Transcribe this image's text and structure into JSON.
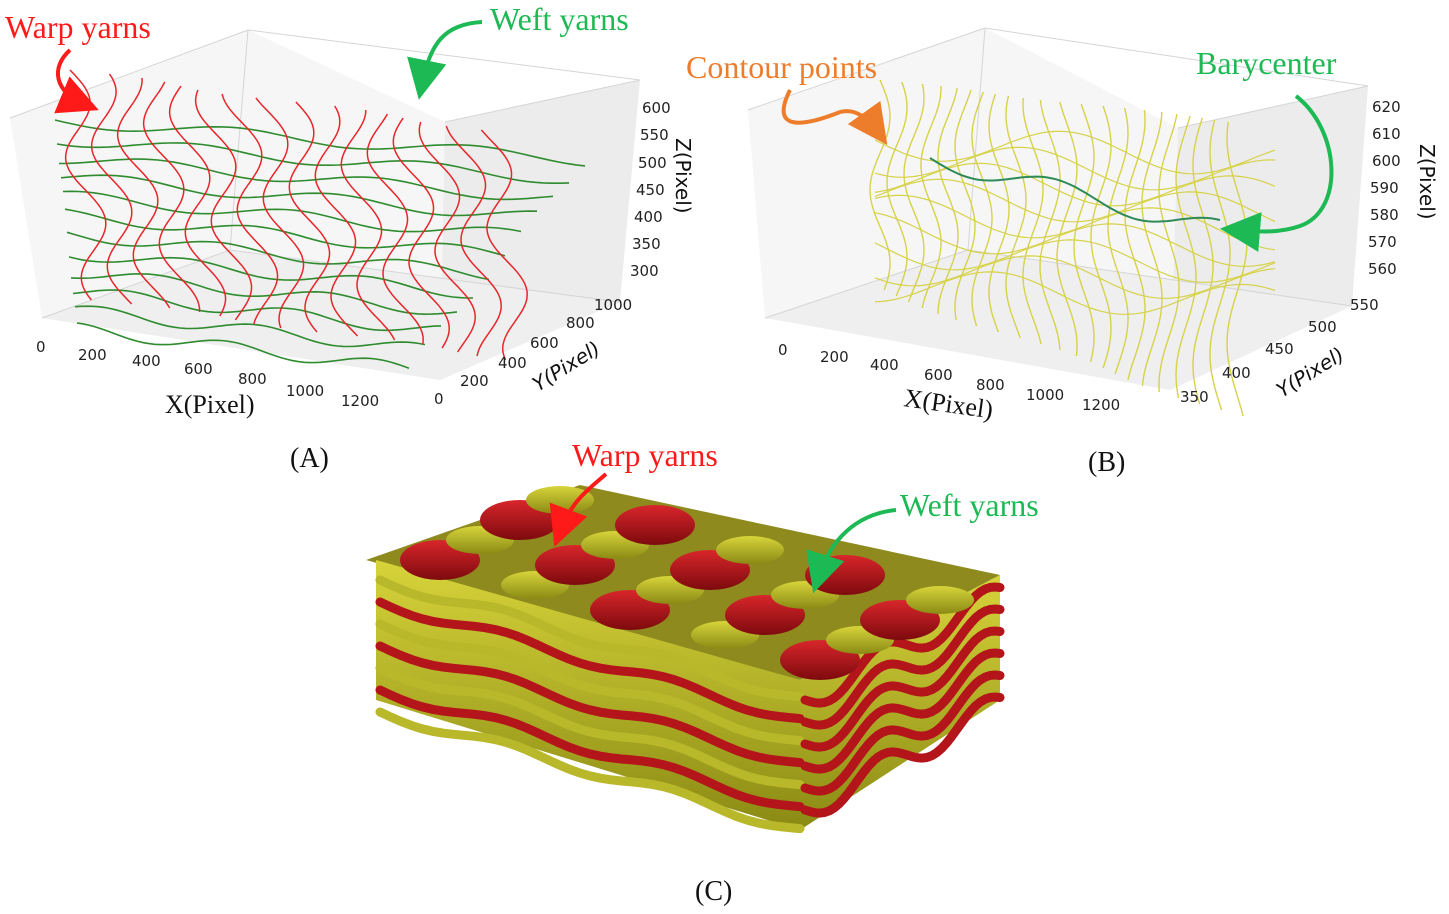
{
  "panelA": {
    "label": "(A)",
    "callout_warp": "Warp yarns",
    "callout_weft": "Weft yarns",
    "x_axis_title": "X(Pixel)",
    "y_axis_title": "Y(Pixel)",
    "z_axis_title": "Z(Pixel)",
    "x_ticks": [
      "0",
      "200",
      "400",
      "600",
      "800",
      "1000",
      "1200"
    ],
    "y_ticks": [
      "0",
      "200",
      "400",
      "600",
      "800",
      "1000"
    ],
    "z_ticks": [
      "600",
      "550",
      "500",
      "450",
      "400",
      "350",
      "300"
    ],
    "warp_count": 16,
    "weft_count": 12
  },
  "panelB": {
    "label": "(B)",
    "callout_contour": "Contour points",
    "callout_barycenter": "Barycenter",
    "x_axis_title": "X(Pixel)",
    "y_axis_title": "Y(Pixel)",
    "z_axis_title": "Z(Pixel)",
    "x_ticks": [
      "0",
      "200",
      "400",
      "600",
      "800",
      "1000",
      "1200"
    ],
    "y_ticks": [
      "350",
      "400",
      "450",
      "500",
      "550"
    ],
    "z_ticks": [
      "620",
      "610",
      "600",
      "590",
      "580",
      "570",
      "560"
    ],
    "contour_count": 22
  },
  "panelC": {
    "label": "(C)",
    "callout_warp": "Warp yarns",
    "callout_weft": "Weft yarns"
  },
  "colors": {
    "warp": "#e8262a",
    "weft": "#2e8b2e",
    "contour": "#d6d24a",
    "barycenter": "#2e8b57",
    "callout_red": "#ff1a1a",
    "callout_green": "#1db954",
    "callout_orange": "#ee7d2b",
    "solid_warp": "#b3151a",
    "solid_weft": "#b9b82a"
  }
}
